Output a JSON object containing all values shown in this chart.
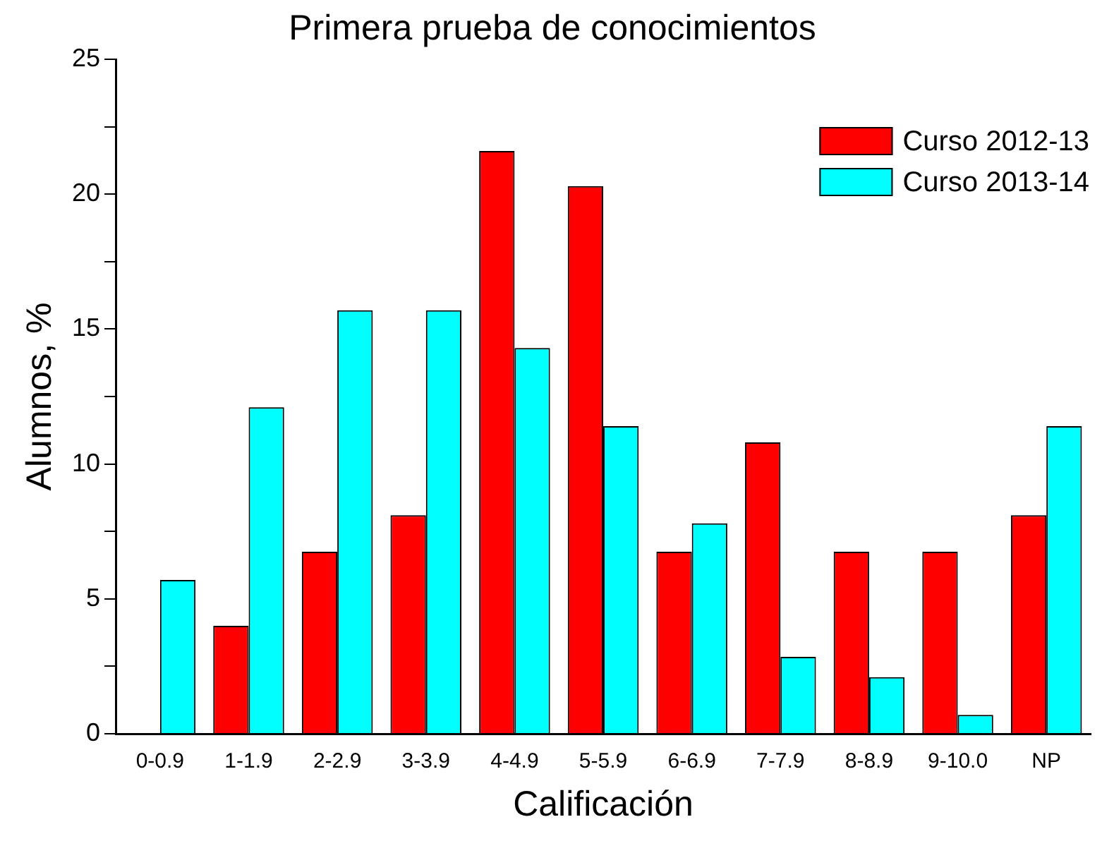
{
  "chart_data": {
    "type": "bar",
    "title": "Primera prueba de conocimientos",
    "xlabel": "Calificación",
    "ylabel": "Alumnos, %",
    "categories": [
      "0-0.9",
      "1-1.9",
      "2-2.9",
      "3-3.9",
      "4-4.9",
      "5-5.9",
      "6-6.9",
      "7-7.9",
      "8-8.9",
      "9-10.0",
      "NP"
    ],
    "series": [
      {
        "name": "Curso 2012-13",
        "color": "#ff0000",
        "values": [
          0,
          4.0,
          6.75,
          8.1,
          21.6,
          20.3,
          6.75,
          10.8,
          6.75,
          6.75,
          8.1
        ]
      },
      {
        "name": "Curso 2013-14",
        "color": "#00ffff",
        "values": [
          5.7,
          12.1,
          15.7,
          15.7,
          14.3,
          11.4,
          7.8,
          2.85,
          2.1,
          0.7,
          11.4
        ]
      }
    ],
    "ylim": [
      0,
      25
    ],
    "yticks": [
      0,
      {
        "value": 2.5,
        "label": null
      },
      5,
      {
        "value": 7.5,
        "label": null
      },
      10,
      {
        "value": 12.5,
        "label": null
      },
      15,
      {
        "value": 17.5,
        "label": null
      },
      20,
      {
        "value": 22.5,
        "label": null
      },
      25
    ],
    "grid": false,
    "legend": "top right"
  }
}
